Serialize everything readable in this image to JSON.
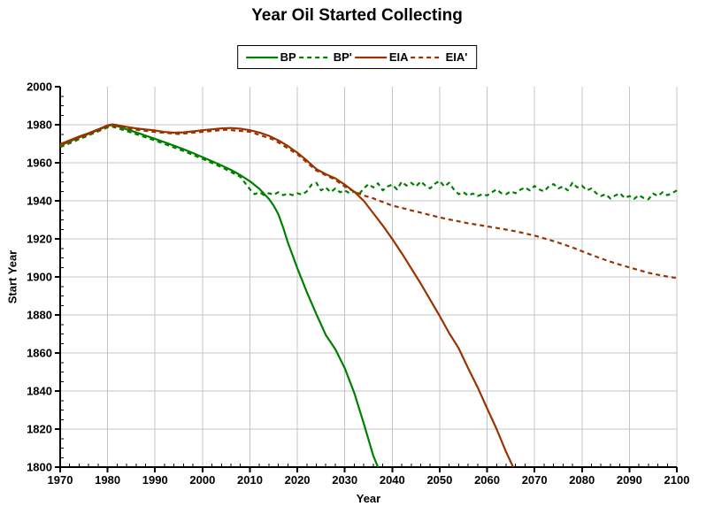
{
  "chart_data": {
    "type": "line",
    "title": "Year Oil Started Collecting",
    "xlabel": "Year",
    "ylabel": "Start Year",
    "xlim": [
      1970,
      2100
    ],
    "ylim": [
      1800,
      2000
    ],
    "x_ticks": [
      1970,
      1980,
      1990,
      2000,
      2010,
      2020,
      2030,
      2040,
      2050,
      2060,
      2070,
      2080,
      2090,
      2100
    ],
    "y_ticks": [
      1800,
      1820,
      1840,
      1860,
      1880,
      1900,
      1920,
      1940,
      1960,
      1980,
      2000
    ],
    "x_minor_step": 2,
    "y_minor_step": 5,
    "grid": {
      "x_step": 10,
      "y_step": 20,
      "color": "#c4c4c4"
    },
    "legend_position": "top-center",
    "axis_color": "#000000",
    "series": [
      {
        "id": "bp",
        "name": "BP",
        "color": "#008000",
        "style": "solid",
        "points": [
          [
            1970,
            1969
          ],
          [
            1972,
            1971.2
          ],
          [
            1974,
            1973.3
          ],
          [
            1976,
            1975.2
          ],
          [
            1978,
            1977.2
          ],
          [
            1980,
            1979.4
          ],
          [
            1981,
            1979.9
          ],
          [
            1982,
            1979.3
          ],
          [
            1984,
            1977.6
          ],
          [
            1986,
            1976
          ],
          [
            1988,
            1974.3
          ],
          [
            1990,
            1972.6
          ],
          [
            1992,
            1970.8
          ],
          [
            1994,
            1969
          ],
          [
            1996,
            1967.1
          ],
          [
            1998,
            1965.1
          ],
          [
            2000,
            1963
          ],
          [
            2002,
            1960.8
          ],
          [
            2004,
            1958.6
          ],
          [
            2006,
            1956.3
          ],
          [
            2008,
            1953.5
          ],
          [
            2010,
            1950.3
          ],
          [
            2012,
            1946.3
          ],
          [
            2014,
            1941
          ],
          [
            2015,
            1937.5
          ],
          [
            2016,
            1933
          ],
          [
            2017,
            1926
          ],
          [
            2018,
            1918
          ],
          [
            2020,
            1904.5
          ],
          [
            2022,
            1892
          ],
          [
            2024,
            1880.5
          ],
          [
            2026,
            1869.5
          ],
          [
            2028,
            1862
          ],
          [
            2030,
            1852
          ],
          [
            2032,
            1839
          ],
          [
            2034,
            1823
          ],
          [
            2036,
            1806
          ],
          [
            2037,
            1800
          ]
        ]
      },
      {
        "id": "bp-prime",
        "name": "BP'",
        "color": "#008000",
        "style": "dashed",
        "points": [
          [
            1970,
            1968.2
          ],
          [
            1975,
            1973.4
          ],
          [
            1980,
            1978.6
          ],
          [
            1981,
            1979
          ],
          [
            1984,
            1976.7
          ],
          [
            1988,
            1973.4
          ],
          [
            1992,
            1969.9
          ],
          [
            1996,
            1966.2
          ],
          [
            2000,
            1962.1
          ],
          [
            2004,
            1957.7
          ],
          [
            2008,
            1952.6
          ],
          [
            2010,
            1946
          ],
          [
            2011,
            1943.5
          ],
          [
            2012,
            1944.5
          ],
          [
            2013,
            1943
          ],
          [
            2014,
            1944
          ],
          [
            2015,
            1943.2
          ],
          [
            2016,
            1944.5
          ],
          [
            2017,
            1943
          ],
          [
            2018,
            1943.8
          ],
          [
            2019,
            1943
          ],
          [
            2020,
            1944
          ],
          [
            2021,
            1943.2
          ],
          [
            2022,
            1945
          ],
          [
            2023,
            1948.5
          ],
          [
            2024,
            1949.5
          ],
          [
            2025,
            1945.5
          ],
          [
            2026,
            1947
          ],
          [
            2027,
            1944.5
          ],
          [
            2028,
            1946.5
          ],
          [
            2029,
            1944.5
          ],
          [
            2030,
            1945.5
          ],
          [
            2031,
            1944
          ],
          [
            2032,
            1944.8
          ],
          [
            2033,
            1943.5
          ],
          [
            2034,
            1946.5
          ],
          [
            2035,
            1948.8
          ],
          [
            2036,
            1947
          ],
          [
            2037,
            1949.2
          ],
          [
            2038,
            1945.5
          ],
          [
            2039,
            1947.5
          ],
          [
            2040,
            1948.5
          ],
          [
            2041,
            1946
          ],
          [
            2042,
            1950
          ],
          [
            2043,
            1948
          ],
          [
            2044,
            1949.5
          ],
          [
            2045,
            1947.5
          ],
          [
            2046,
            1950.2
          ],
          [
            2047,
            1948
          ],
          [
            2048,
            1946.5
          ],
          [
            2049,
            1949
          ],
          [
            2050,
            1950.5
          ],
          [
            2051,
            1947.5
          ],
          [
            2052,
            1949.5
          ],
          [
            2053,
            1946
          ],
          [
            2054,
            1943.5
          ],
          [
            2055,
            1944.5
          ],
          [
            2056,
            1942.8
          ],
          [
            2057,
            1943.8
          ],
          [
            2058,
            1942.5
          ],
          [
            2059,
            1943.5
          ],
          [
            2060,
            1942.8
          ],
          [
            2061,
            1944.5
          ],
          [
            2062,
            1946
          ],
          [
            2063,
            1944
          ],
          [
            2064,
            1943.5
          ],
          [
            2065,
            1945
          ],
          [
            2066,
            1944
          ],
          [
            2067,
            1945.8
          ],
          [
            2068,
            1947
          ],
          [
            2069,
            1945.5
          ],
          [
            2070,
            1947.8
          ],
          [
            2071,
            1946
          ],
          [
            2072,
            1945
          ],
          [
            2073,
            1947.5
          ],
          [
            2074,
            1948.8
          ],
          [
            2075,
            1946.5
          ],
          [
            2076,
            1947.5
          ],
          [
            2077,
            1945.5
          ],
          [
            2078,
            1949.5
          ],
          [
            2079,
            1947
          ],
          [
            2080,
            1948
          ],
          [
            2081,
            1945.5
          ],
          [
            2082,
            1946.5
          ],
          [
            2083,
            1944
          ],
          [
            2084,
            1942.5
          ],
          [
            2085,
            1943.5
          ],
          [
            2086,
            1941.2
          ],
          [
            2087,
            1942.8
          ],
          [
            2088,
            1944
          ],
          [
            2089,
            1941.5
          ],
          [
            2090,
            1942.5
          ],
          [
            2091,
            1941
          ],
          [
            2092,
            1943
          ],
          [
            2093,
            1941.5
          ],
          [
            2094,
            1940.8
          ],
          [
            2095,
            1943.8
          ],
          [
            2096,
            1942.5
          ],
          [
            2097,
            1944.5
          ],
          [
            2098,
            1943
          ],
          [
            2099,
            1944
          ],
          [
            2100,
            1945.5
          ]
        ]
      },
      {
        "id": "eia",
        "name": "EIA",
        "color": "#993300",
        "style": "solid",
        "points": [
          [
            1970,
            1969.8
          ],
          [
            1972,
            1971.8
          ],
          [
            1974,
            1973.8
          ],
          [
            1976,
            1975.6
          ],
          [
            1978,
            1977.6
          ],
          [
            1980,
            1979.7
          ],
          [
            1981,
            1980.2
          ],
          [
            1982,
            1979.8
          ],
          [
            1984,
            1978.9
          ],
          [
            1986,
            1978.1
          ],
          [
            1988,
            1977.5
          ],
          [
            1990,
            1977
          ],
          [
            1992,
            1976.2
          ],
          [
            1994,
            1975.8
          ],
          [
            1996,
            1976
          ],
          [
            1998,
            1976.5
          ],
          [
            2000,
            1977.1
          ],
          [
            2002,
            1977.6
          ],
          [
            2004,
            1978.1
          ],
          [
            2006,
            1978.3
          ],
          [
            2008,
            1977.9
          ],
          [
            2010,
            1977.1
          ],
          [
            2012,
            1975.9
          ],
          [
            2014,
            1974.2
          ],
          [
            2016,
            1971.8
          ],
          [
            2018,
            1968.8
          ],
          [
            2020,
            1965.3
          ],
          [
            2022,
            1961.2
          ],
          [
            2024,
            1956.7
          ],
          [
            2026,
            1954
          ],
          [
            2028,
            1951.8
          ],
          [
            2030,
            1948.5
          ],
          [
            2032,
            1944.8
          ],
          [
            2034,
            1940
          ],
          [
            2036,
            1933.5
          ],
          [
            2038,
            1927
          ],
          [
            2040,
            1920
          ],
          [
            2042,
            1912.5
          ],
          [
            2044,
            1904.5
          ],
          [
            2046,
            1896.5
          ],
          [
            2048,
            1888
          ],
          [
            2050,
            1879.5
          ],
          [
            2052,
            1870.5
          ],
          [
            2054,
            1862.5
          ],
          [
            2056,
            1852
          ],
          [
            2058,
            1842
          ],
          [
            2060,
            1831
          ],
          [
            2062,
            1820
          ],
          [
            2064,
            1808
          ],
          [
            2065.5,
            1800
          ]
        ]
      },
      {
        "id": "eia-prime",
        "name": "EIA'",
        "color": "#993300",
        "style": "dashed",
        "points": [
          [
            1970,
            1969
          ],
          [
            1975,
            1973.9
          ],
          [
            1980,
            1978.9
          ],
          [
            1981,
            1979.4
          ],
          [
            1985,
            1977.7
          ],
          [
            1990,
            1976.2
          ],
          [
            1995,
            1975.1
          ],
          [
            2000,
            1976.3
          ],
          [
            2005,
            1977.4
          ],
          [
            2010,
            1976.3
          ],
          [
            2015,
            1972.2
          ],
          [
            2020,
            1964.5
          ],
          [
            2024,
            1955.9
          ],
          [
            2028,
            1951
          ],
          [
            2030,
            1947.5
          ],
          [
            2032,
            1944.8
          ],
          [
            2034,
            1942.8
          ],
          [
            2036,
            1941.3
          ],
          [
            2038,
            1939.4
          ],
          [
            2040,
            1937.5
          ],
          [
            2042,
            1936.3
          ],
          [
            2044,
            1935
          ],
          [
            2046,
            1933.8
          ],
          [
            2048,
            1932.5
          ],
          [
            2050,
            1931.3
          ],
          [
            2052,
            1930.2
          ],
          [
            2054,
            1929.2
          ],
          [
            2056,
            1928.2
          ],
          [
            2058,
            1927.4
          ],
          [
            2060,
            1926.6
          ],
          [
            2062,
            1925.7
          ],
          [
            2064,
            1924.9
          ],
          [
            2066,
            1924
          ],
          [
            2068,
            1922.9
          ],
          [
            2070,
            1921.7
          ],
          [
            2072,
            1920.3
          ],
          [
            2074,
            1918.8
          ],
          [
            2076,
            1917.2
          ],
          [
            2078,
            1915.5
          ],
          [
            2080,
            1913.5
          ],
          [
            2082,
            1911.6
          ],
          [
            2084,
            1909.7
          ],
          [
            2086,
            1908
          ],
          [
            2088,
            1906.4
          ],
          [
            2090,
            1905
          ],
          [
            2092,
            1903.6
          ],
          [
            2094,
            1902.2
          ],
          [
            2096,
            1901.1
          ],
          [
            2098,
            1900.2
          ],
          [
            2100,
            1899.4
          ]
        ]
      }
    ]
  }
}
